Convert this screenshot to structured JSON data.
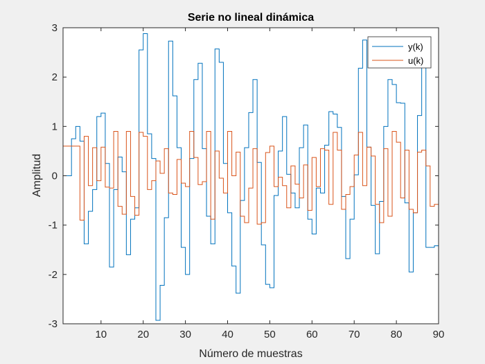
{
  "chart_data": {
    "type": "line",
    "title": "Serie no lineal dinámica",
    "xlabel": "Número de muestras",
    "ylabel": "Amplitud",
    "xlim": [
      1,
      90
    ],
    "ylim": [
      -3,
      3
    ],
    "xticks": [
      10,
      20,
      30,
      40,
      50,
      60,
      70,
      80,
      90
    ],
    "yticks": [
      -3,
      -2,
      -1,
      0,
      1,
      2,
      3
    ],
    "grid": false,
    "legend_position": "top-right",
    "step": true,
    "series": [
      {
        "name": "y(k)",
        "color": "#0072BD",
        "x": [
          1,
          2,
          3,
          4,
          5,
          6,
          7,
          8,
          9,
          10,
          11,
          12,
          13,
          14,
          15,
          16,
          17,
          18,
          19,
          20,
          21,
          22,
          23,
          24,
          25,
          26,
          27,
          28,
          29,
          30,
          31,
          32,
          33,
          34,
          35,
          36,
          37,
          38,
          39,
          40,
          41,
          42,
          43,
          44,
          45,
          46,
          47,
          48,
          49,
          50,
          51,
          52,
          53,
          54,
          55,
          56,
          57,
          58,
          59,
          60,
          61,
          62,
          63,
          64,
          65,
          66,
          67,
          68,
          69,
          70,
          71,
          72,
          73,
          74,
          75,
          76,
          77,
          78,
          79,
          80,
          81,
          82,
          83,
          84,
          85,
          86,
          87,
          88,
          89,
          90
        ],
        "values": [
          0,
          0,
          0.75,
          1.0,
          0.7,
          -1.38,
          -0.72,
          -0.28,
          1.2,
          1.27,
          0.25,
          -1.85,
          -0.28,
          0.38,
          0.08,
          -1.6,
          -0.88,
          -0.65,
          2.55,
          2.88,
          0.85,
          0.35,
          -2.93,
          -2.22,
          -0.85,
          2.73,
          1.62,
          0.57,
          -1.45,
          -2.0,
          0.35,
          1.95,
          2.28,
          0.55,
          -0.82,
          -1.38,
          2.57,
          2.3,
          0.25,
          -0.75,
          -1.83,
          -2.38,
          -0.5,
          0.57,
          1.28,
          1.95,
          0.27,
          -1.4,
          -2.2,
          -2.27,
          -0.4,
          0.5,
          1.2,
          0.03,
          -0.35,
          -0.65,
          0.57,
          1.03,
          -0.88,
          -1.18,
          -0.25,
          -0.35,
          0.62,
          1.3,
          1.25,
          0.98,
          -0.42,
          -1.68,
          -0.88,
          0.02,
          2.18,
          2.75,
          0.58,
          -0.6,
          -1.58,
          -0.52,
          1.0,
          1.95,
          1.85,
          1.48,
          1.47,
          -0.55,
          -1.95,
          -0.75,
          1.22,
          2.3,
          -1.45,
          -1.45,
          -1.42,
          -1.0
        ]
      },
      {
        "name": "u(k)",
        "color": "#D95319",
        "x": [
          1,
          2,
          3,
          4,
          5,
          6,
          7,
          8,
          9,
          10,
          11,
          12,
          13,
          14,
          15,
          16,
          17,
          18,
          19,
          20,
          21,
          22,
          23,
          24,
          25,
          26,
          27,
          28,
          29,
          30,
          31,
          32,
          33,
          34,
          35,
          36,
          37,
          38,
          39,
          40,
          41,
          42,
          43,
          44,
          45,
          46,
          47,
          48,
          49,
          50,
          51,
          52,
          53,
          54,
          55,
          56,
          57,
          58,
          59,
          60,
          61,
          62,
          63,
          64,
          65,
          66,
          67,
          68,
          69,
          70,
          71,
          72,
          73,
          74,
          75,
          76,
          77,
          78,
          79,
          80,
          81,
          82,
          83,
          84,
          85,
          86,
          87,
          88,
          89,
          90
        ],
        "values": [
          0.6,
          0.6,
          0.6,
          0.6,
          -0.9,
          0.8,
          -0.2,
          0.57,
          -0.1,
          0.58,
          -0.23,
          -0.25,
          0.9,
          -0.62,
          -0.78,
          0.9,
          -0.42,
          -0.8,
          0.88,
          0.8,
          -0.28,
          -0.1,
          0.3,
          0.05,
          0.55,
          -0.35,
          -0.38,
          0.33,
          -0.15,
          -0.22,
          0.9,
          0.37,
          -0.18,
          -0.12,
          0.9,
          -0.88,
          0.5,
          -0.05,
          -0.35,
          0.9,
          0.0,
          0.48,
          -0.82,
          -0.95,
          -0.25,
          0.55,
          -0.98,
          -0.95,
          0.47,
          0.6,
          -0.22,
          -0.03,
          -0.2,
          -0.65,
          0.2,
          -0.17,
          -0.45,
          0.22,
          -0.7,
          0.37,
          -0.22,
          0.55,
          0.52,
          -0.58,
          0.88,
          0.52,
          -0.68,
          -0.38,
          -0.22,
          0.42,
          0.88,
          -0.2,
          0.58,
          0.4,
          -0.58,
          -0.95,
          0.55,
          -0.82,
          0.9,
          0.68,
          -0.45,
          0.52,
          -0.68,
          -0.75,
          0.48,
          0.52,
          0.2,
          -0.62,
          -0.58,
          -0.5
        ]
      }
    ]
  }
}
